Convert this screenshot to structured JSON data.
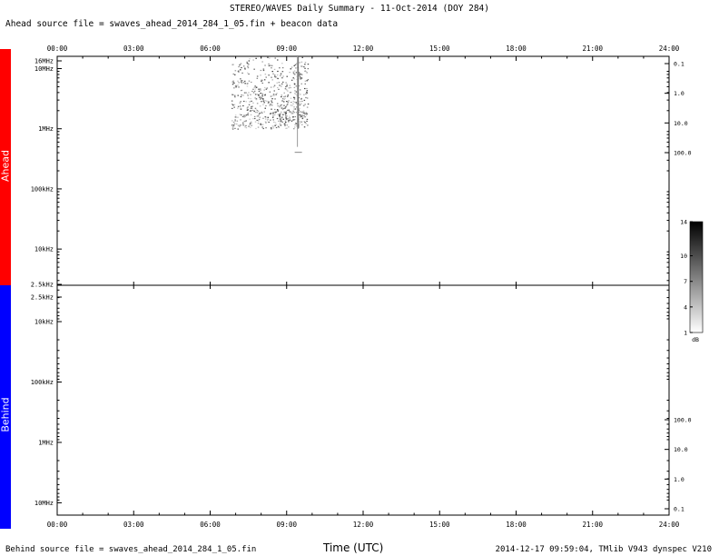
{
  "header": {
    "title": "STEREO/WAVES Daily Summary - 11-Oct-2014 (DOY 284)",
    "ahead_source": "Ahead source file = swaves_ahead_2014_284_1_05.fin + beacon data",
    "behind_source": "Behind source file = swaves_ahead_2014_284_1_05.fin",
    "stamp": "2014-12-17 09:59:04, TMlib V943 dynspec V210"
  },
  "side_bars": {
    "ahead": {
      "label": "Ahead",
      "color": "#ff0000"
    },
    "behind": {
      "label": "Behind",
      "color": "#0000ff"
    }
  },
  "chart_data": {
    "type": "heatmap",
    "title": "STEREO/WAVES Daily Summary - 11-Oct-2014 (DOY 284)",
    "xlabel": "Time (UTC)",
    "x_ticks": [
      "00:00",
      "03:00",
      "06:00",
      "09:00",
      "12:00",
      "15:00",
      "18:00",
      "21:00",
      "24:00"
    ],
    "xlim_hours": [
      0,
      24
    ],
    "panels": [
      {
        "name": "Ahead",
        "freq_ticks": [
          "2.5kHz",
          "10kHz",
          "100kHz",
          "1MHz",
          "10MHz",
          "16MHz"
        ],
        "right_ticks": [
          "0.1",
          "1.0",
          "10.0",
          "100.0"
        ],
        "activity": [
          {
            "start": "06:50",
            "end": "09:50",
            "freq_min": "1MHz",
            "freq_max": "16MHz",
            "note": "speckled emission"
          },
          {
            "start": "09:20",
            "end": "09:35",
            "freq_min": "500kHz",
            "freq_max": "16MHz",
            "note": "vertical streak"
          }
        ]
      },
      {
        "name": "Behind",
        "freq_ticks": [
          "10MHz",
          "1MHz",
          "100kHz",
          "10kHz",
          "2.5kHz"
        ],
        "right_ticks": [
          "100.0",
          "10.0",
          "1.0",
          "0.1"
        ],
        "activity": []
      }
    ],
    "colorbar": {
      "unit": "dB",
      "ticks": [
        "1",
        "4",
        "7",
        "10",
        "14"
      ],
      "range": [
        1,
        14
      ],
      "colormap": "white-to-black"
    }
  }
}
